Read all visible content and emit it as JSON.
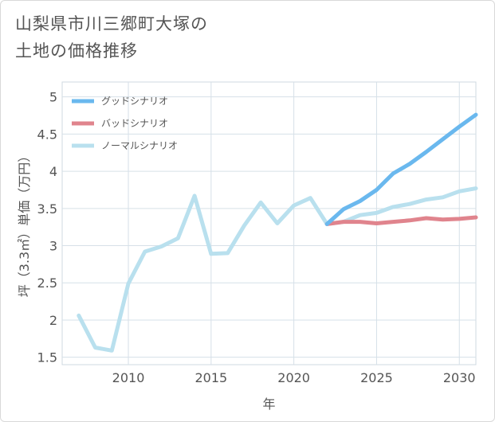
{
  "title_line1": "山梨県市川三郷町大塚の",
  "title_line2": "土地の価格推移",
  "chart_data": {
    "type": "line",
    "title": "山梨県市川三郷町大塚の土地の価格推移",
    "xlabel": "年",
    "ylabel": "坪（3.3㎡）単価（万円）",
    "xlim": [
      2006,
      2031
    ],
    "ylim": [
      1.4,
      5.2
    ],
    "xticks": [
      2010,
      2015,
      2020,
      2025,
      2030
    ],
    "yticks": [
      1.5,
      2,
      2.5,
      3,
      3.5,
      4,
      4.5,
      5
    ],
    "grid": true,
    "legend_position": "top-left",
    "series": [
      {
        "name": "グッドシナリオ",
        "color": "#6ab8ee",
        "x": [
          2022,
          2023,
          2024,
          2025,
          2026,
          2027,
          2028,
          2029,
          2030,
          2031
        ],
        "y": [
          3.29,
          3.49,
          3.6,
          3.75,
          3.97,
          4.1,
          4.26,
          4.43,
          4.6,
          4.76
        ]
      },
      {
        "name": "バッドシナリオ",
        "color": "#e0848d",
        "x": [
          2022,
          2023,
          2024,
          2025,
          2026,
          2027,
          2028,
          2029,
          2030,
          2031
        ],
        "y": [
          3.29,
          3.32,
          3.32,
          3.3,
          3.32,
          3.34,
          3.37,
          3.35,
          3.36,
          3.38
        ]
      },
      {
        "name": "ノーマルシナリオ",
        "color": "#b9e0ee",
        "x": [
          2007,
          2008,
          2009,
          2010,
          2011,
          2012,
          2013,
          2014,
          2015,
          2016,
          2017,
          2018,
          2019,
          2020,
          2021,
          2022,
          2023,
          2024,
          2025,
          2026,
          2027,
          2028,
          2029,
          2030,
          2031
        ],
        "y": [
          2.06,
          1.63,
          1.59,
          2.49,
          2.92,
          2.99,
          3.1,
          3.67,
          2.89,
          2.9,
          3.27,
          3.58,
          3.3,
          3.54,
          3.64,
          3.29,
          3.32,
          3.41,
          3.44,
          3.52,
          3.56,
          3.62,
          3.65,
          3.73,
          3.77
        ]
      }
    ]
  }
}
